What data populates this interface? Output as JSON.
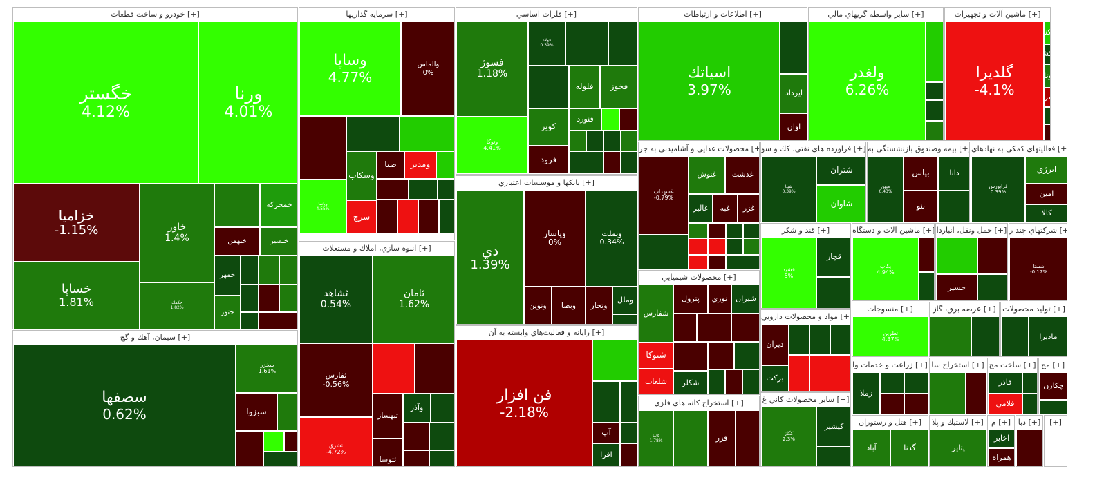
{
  "palette": {
    "bright_green": "#33ff00",
    "green": "#22cc00",
    "mid_green": "#1a8c00",
    "forest_green": "#1f7a0c",
    "dark_green": "#0b5c0b",
    "deep_green": "#0e4a0e",
    "dark_red": "#4a0000",
    "maroon": "#5c0a0a",
    "red": "#ee1111",
    "mid_red": "#b00000",
    "border": "#ffffff"
  },
  "sectors": [
    {
      "id": "auto",
      "title": "خودرو و ساخت قطعات [+]",
      "stocks": [
        {
          "symbol": "خگستر",
          "change": "4.12%",
          "color": "#33ff00"
        },
        {
          "symbol": "ورنا",
          "change": "4.01%",
          "color": "#33ff00"
        },
        {
          "symbol": "خزاميا",
          "change": "-1.15%",
          "color": "#5c0a0a"
        },
        {
          "symbol": "خساپا",
          "change": "1.81%",
          "color": "#1f7a0c"
        },
        {
          "symbol": "خاور",
          "change": "1.4%",
          "color": "#1f7a0c"
        },
        {
          "symbol": "حكمك",
          "change": "1.82%",
          "color": "#1f7a0c"
        },
        {
          "symbol": "خمحركه",
          "change": "",
          "color": "#1f9c0c"
        },
        {
          "symbol": "خبهمن",
          "change": "",
          "color": "#4a0000"
        },
        {
          "symbol": "خنصير",
          "change": "",
          "color": "#1f7a0c"
        },
        {
          "symbol": "خمهر",
          "change": "",
          "color": "#0e4a0e"
        },
        {
          "symbol": "ختور",
          "change": "",
          "color": "#1f7a0c"
        }
      ]
    },
    {
      "id": "invest",
      "title": "سرمايه گذاريها [+]",
      "stocks": [
        {
          "symbol": "وساپا",
          "change": "4.77%",
          "color": "#33ff00"
        },
        {
          "symbol": "والماس",
          "change": "0%",
          "color": "#4a0000"
        },
        {
          "symbol": "وسكاب",
          "change": "",
          "color": "#1f7a0c"
        },
        {
          "symbol": "صبا",
          "change": "",
          "color": "#4a0000"
        },
        {
          "symbol": "ومدير",
          "change": "",
          "color": "#ee1111"
        },
        {
          "symbol": "وپاسا",
          "change": "4.55%",
          "color": "#33ff00"
        },
        {
          "symbol": "سرچ",
          "change": "",
          "color": "#ee1111"
        }
      ]
    },
    {
      "id": "metals",
      "title": "فلزات اساسي [+]",
      "stocks": [
        {
          "symbol": "فسوژ",
          "change": "1.18%",
          "color": "#1f7a0c"
        },
        {
          "symbol": "فولاد",
          "change": "0.39%",
          "color": "#0e4a0e"
        },
        {
          "symbol": "فلوله",
          "change": "",
          "color": "#1f7a0c"
        },
        {
          "symbol": "فخوز",
          "change": "",
          "color": "#1f7a0c"
        },
        {
          "symbol": "فنورد",
          "change": "",
          "color": "#1f7a0c"
        },
        {
          "symbol": "كوير",
          "change": "",
          "color": "#1f7a0c"
        },
        {
          "symbol": "فرود",
          "change": "",
          "color": "#4a0000"
        },
        {
          "symbol": "وتوكا",
          "change": "4.41%",
          "color": "#33ff00"
        }
      ]
    },
    {
      "id": "ict",
      "title": "اطلاعات و ارتباطات [+]",
      "stocks": [
        {
          "symbol": "اسياتك",
          "change": "3.97%",
          "color": "#22cc00"
        },
        {
          "symbol": "ايرداد",
          "change": "",
          "color": "#1f7a0c"
        },
        {
          "symbol": "اوان",
          "change": "",
          "color": "#4a0000"
        }
      ]
    },
    {
      "id": "finance",
      "title": "ساير واسطه گريهاي مالي [+]",
      "stocks": [
        {
          "symbol": "ولغدر",
          "change": "6.26%",
          "color": "#33ff00"
        }
      ]
    },
    {
      "id": "machinery",
      "title": "ماشين آلات و تجهيزات [+]",
      "stocks": [
        {
          "symbol": "گلديرا",
          "change": "-4.1%",
          "color": "#ee1111"
        },
        {
          "symbol": "تكنو",
          "change": "",
          "color": "#22cc00"
        },
        {
          "symbol": "تكشا",
          "change": "",
          "color": "#0e4a0e"
        },
        {
          "symbol": "لبوتان",
          "change": "",
          "color": "#1f7a0c"
        },
        {
          "symbol": "لسرما",
          "change": "",
          "color": "#b00000"
        }
      ]
    },
    {
      "id": "cement",
      "title": "سيمان، آهك و گچ [+]",
      "stocks": [
        {
          "symbol": "سصفها",
          "change": "0.62%",
          "color": "#0e4a0e"
        },
        {
          "symbol": "سخزر",
          "change": "1.61%",
          "color": "#1f7a0c"
        },
        {
          "symbol": "سبزوا",
          "change": "",
          "color": "#4a0000"
        }
      ]
    },
    {
      "id": "realestate",
      "title": "انبوه سازي، املاك و مستغلات [+]",
      "stocks": [
        {
          "symbol": "ثشاهد",
          "change": "0.54%",
          "color": "#0e4a0e"
        },
        {
          "symbol": "ثامان",
          "change": "1.62%",
          "color": "#1f7a0c"
        },
        {
          "symbol": "ثفارس",
          "change": "-0.56%",
          "color": "#4a0000"
        },
        {
          "symbol": "ثبهساز",
          "change": "",
          "color": "#4a0000"
        },
        {
          "symbol": "وآذر",
          "change": "",
          "color": "#0e4a0e"
        },
        {
          "symbol": "ثتوسا",
          "change": "",
          "color": "#4a0000"
        },
        {
          "symbol": "ثشرق",
          "change": "-4.72%",
          "color": "#ee1111"
        }
      ]
    },
    {
      "id": "banks",
      "title": "بانكها و موسسات اعتباري [+]",
      "stocks": [
        {
          "symbol": "دي",
          "change": "1.39%",
          "color": "#1f7a0c"
        },
        {
          "symbol": "وپاسار",
          "change": "0%",
          "color": "#4a0000"
        },
        {
          "symbol": "وبملت",
          "change": "0.34%",
          "color": "#0e4a0e"
        },
        {
          "symbol": "وملل",
          "change": "",
          "color": "#0e4a0e"
        },
        {
          "symbol": "وتجار",
          "change": "",
          "color": "#4a0000"
        },
        {
          "symbol": "وبصا",
          "change": "",
          "color": "#4a0000"
        },
        {
          "symbol": "ونوين",
          "change": "",
          "color": "#4a0000"
        }
      ]
    },
    {
      "id": "computer",
      "title": "رايانه و فعاليت‌هاي وابسته به آن [+]",
      "stocks": [
        {
          "symbol": "فن افزار",
          "change": "-2.18%",
          "color": "#b00000"
        },
        {
          "symbol": "آپ",
          "change": "",
          "color": "#4a0000"
        },
        {
          "symbol": "افرا",
          "change": "",
          "color": "#0e4a0e"
        }
      ]
    },
    {
      "id": "food",
      "title": "محصولات غذايي و آشاميدني به جز [+]",
      "stocks": [
        {
          "symbol": "غشهداب",
          "change": "-0.79%",
          "color": "#4a0000"
        },
        {
          "symbol": "غنوش",
          "change": "",
          "color": "#1f7a0c"
        },
        {
          "symbol": "غدشت",
          "change": "",
          "color": "#4a0000"
        },
        {
          "symbol": "غالبر",
          "change": "",
          "color": "#0e4a0e"
        },
        {
          "symbol": "غبه",
          "change": "",
          "color": "#4a0000"
        },
        {
          "symbol": "غزر",
          "change": "",
          "color": "#4a0000"
        }
      ]
    },
    {
      "id": "oil",
      "title": "فراورده هاي نفتي، كك و سو [+]",
      "stocks": [
        {
          "symbol": "شتران",
          "change": "",
          "color": "#0e4a0e"
        },
        {
          "symbol": "شاوان",
          "change": "",
          "color": "#22cc00"
        },
        {
          "symbol": "شپنا",
          "change": "0.39%",
          "color": "#0e4a0e"
        }
      ]
    },
    {
      "id": "insurance",
      "title": "بيمه وصندوق بازنشستگي به [+]",
      "stocks": [
        {
          "symbol": "بپاس",
          "change": "",
          "color": "#4a0000"
        },
        {
          "symbol": "دانا",
          "change": "",
          "color": "#0e4a0e"
        },
        {
          "symbol": "بنو",
          "change": "",
          "color": "#4a0000"
        },
        {
          "symbol": "ميهن",
          "change": "0.43%",
          "color": "#0e4a0e"
        }
      ]
    },
    {
      "id": "support",
      "title": "فعاليتهاي كمكي به نهادهاي [+]",
      "stocks": [
        {
          "symbol": "انرژي",
          "change": "",
          "color": "#1f7a0c"
        },
        {
          "symbol": "امين",
          "change": "",
          "color": "#4a0000"
        },
        {
          "symbol": "كالا",
          "change": "",
          "color": "#0e4a0e"
        },
        {
          "symbol": "فرابورس",
          "change": "0.39%",
          "color": "#0e4a0e"
        }
      ]
    },
    {
      "id": "chemicals",
      "title": "محصولات شيميايي [+]",
      "stocks": [
        {
          "symbol": "شفارس",
          "change": "",
          "color": "#1f7a0c"
        },
        {
          "symbol": "پترول",
          "change": "",
          "color": "#4a0000"
        },
        {
          "symbol": "نوري",
          "change": "",
          "color": "#4a0000"
        },
        {
          "symbol": "شيران",
          "change": "",
          "color": "#0e4a0e"
        },
        {
          "symbol": "شتوكا",
          "change": "",
          "color": "#ee1111"
        },
        {
          "symbol": "شلعاب",
          "change": "",
          "color": "#ee1111"
        },
        {
          "symbol": "شكلر",
          "change": "",
          "color": "#0e4a0e"
        }
      ]
    },
    {
      "id": "sugar",
      "title": "قند و شكر [+]",
      "stocks": [
        {
          "symbol": "قشيد",
          "change": "5%",
          "color": "#33ff00"
        },
        {
          "symbol": "قچار",
          "change": "",
          "color": "#0e4a0e"
        }
      ]
    },
    {
      "id": "equipment",
      "title": "ماشين آلات و دستگاه [+]",
      "stocks": [
        {
          "symbol": "بكاب",
          "change": "4.94%",
          "color": "#33ff00"
        }
      ]
    },
    {
      "id": "transport",
      "title": "حمل ونقل، انباردا [+]",
      "stocks": [
        {
          "symbol": "حسير",
          "change": "",
          "color": "#4a0000"
        }
      ]
    },
    {
      "id": "multi",
      "title": "شركتهاي چند ر [+]",
      "stocks": [
        {
          "symbol": "شستا",
          "change": "-0.17%",
          "color": "#4a0000"
        }
      ]
    },
    {
      "id": "mining",
      "title": "استخراج كانه هاي فلزي [+]",
      "stocks": [
        {
          "symbol": "كاما",
          "change": "1.78%",
          "color": "#1f7a0c"
        },
        {
          "symbol": "فزر",
          "change": "",
          "color": "#4a0000"
        }
      ]
    },
    {
      "id": "pharma",
      "title": "مواد و محصولات دارويي [+]",
      "stocks": [
        {
          "symbol": "ديران",
          "change": "",
          "color": "#4a0000"
        },
        {
          "symbol": "بركت",
          "change": "",
          "color": "#0e4a0e"
        }
      ]
    },
    {
      "id": "textile",
      "title": "منسوجات [+]",
      "stocks": [
        {
          "symbol": "نطرين",
          "change": "4.37%",
          "color": "#33ff00"
        }
      ]
    },
    {
      "id": "utility",
      "title": "عرضه برق، گاز [+]",
      "stocks": []
    },
    {
      "id": "production",
      "title": "توليد محصولات [+]",
      "stocks": [
        {
          "symbol": "ماديرا",
          "change": "",
          "color": "#0e4a0e"
        }
      ]
    },
    {
      "id": "nonmetal",
      "title": "ساير محصولات كاني غ [+]",
      "stocks": [
        {
          "symbol": "كگاز",
          "change": "2.3%",
          "color": "#1f7a0c"
        },
        {
          "symbol": "كيشير",
          "change": "",
          "color": "#0e4a0e"
        }
      ]
    },
    {
      "id": "agri",
      "title": "زراعت و خدمات وا [+]",
      "stocks": [
        {
          "symbol": "زملا",
          "change": "",
          "color": "#0e4a0e"
        }
      ]
    },
    {
      "id": "extraction",
      "title": "استخراج سا [+]",
      "stocks": []
    },
    {
      "id": "fabricated",
      "title": "ساخت مح [+]",
      "stocks": [
        {
          "symbol": "فاذر",
          "change": "",
          "color": "#0e4a0e"
        },
        {
          "symbol": "فلامي",
          "change": "",
          "color": "#ee1111"
        }
      ]
    },
    {
      "id": "mixed",
      "title": "مح [+]",
      "stocks": [
        {
          "symbol": "چكارن",
          "change": "",
          "color": "#4a0000"
        }
      ]
    },
    {
      "id": "hotel",
      "title": "هتل و رستوران [+]",
      "stocks": [
        {
          "symbol": "آباد",
          "change": "",
          "color": "#1f7a0c"
        },
        {
          "symbol": "گدنا",
          "change": "",
          "color": "#1f7a0c"
        }
      ]
    },
    {
      "id": "plastic",
      "title": "لاستيك و پلا [+]",
      "stocks": [
        {
          "symbol": "پتاير",
          "change": "",
          "color": "#1f7a0c"
        }
      ]
    },
    {
      "id": "telecom",
      "title": "م [+]",
      "stocks": [
        {
          "symbol": "اخابر",
          "change": "",
          "color": "#0e4a0e"
        },
        {
          "symbol": "همراه",
          "change": "",
          "color": "#4a0000"
        }
      ]
    },
    {
      "id": "media",
      "title": "دبا [+]",
      "stocks": []
    },
    {
      "id": "misc",
      "title": "[+]",
      "stocks": []
    }
  ]
}
